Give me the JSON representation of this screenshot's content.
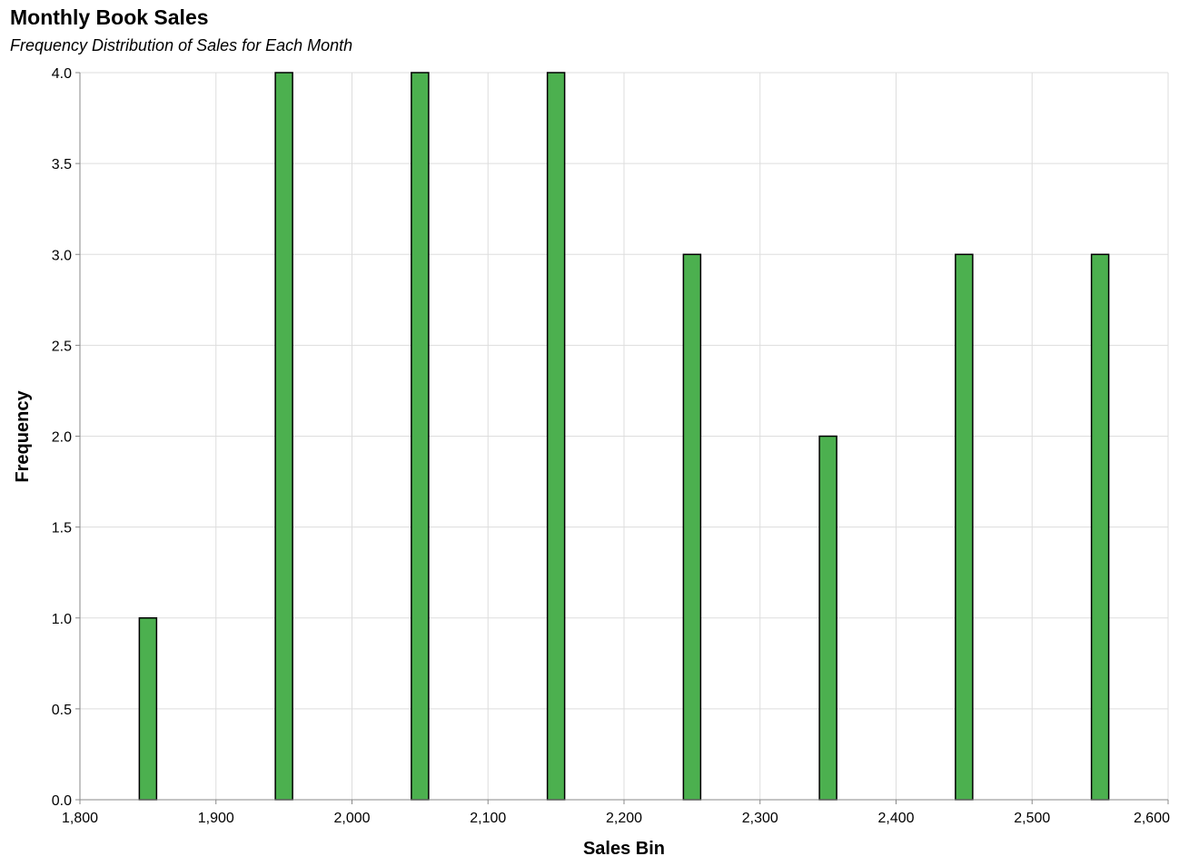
{
  "chart_data": {
    "type": "bar",
    "title": "Monthly Book Sales",
    "subtitle": "Frequency Distribution of Sales for Each Month",
    "xlabel": "Sales Bin",
    "ylabel": "Frequency",
    "xlim": [
      1800,
      2600
    ],
    "ylim": [
      0,
      4
    ],
    "x_ticks": [
      1800,
      1900,
      2000,
      2100,
      2200,
      2300,
      2400,
      2500,
      2600
    ],
    "y_ticks": [
      0,
      0.5,
      1,
      1.5,
      2,
      2.5,
      3,
      3.5,
      4
    ],
    "x_tick_labels": [
      "1,800",
      "1,900",
      "2,000",
      "2,100",
      "2,200",
      "2,300",
      "2,400",
      "2,500",
      "2,600"
    ],
    "y_tick_labels": [
      "0.0",
      "0.5",
      "1.0",
      "1.5",
      "2.0",
      "2.5",
      "3.0",
      "3.5",
      "4.0"
    ],
    "x": [
      1850,
      1950,
      2050,
      2150,
      2250,
      2350,
      2450,
      2550
    ],
    "values": [
      1,
      4,
      4,
      4,
      3,
      2,
      3,
      3
    ],
    "grid": true,
    "bar_color": "#4cb04f",
    "bar_stroke": "#000000",
    "grid_color": "#dddddd",
    "axis_color": "#888888"
  }
}
